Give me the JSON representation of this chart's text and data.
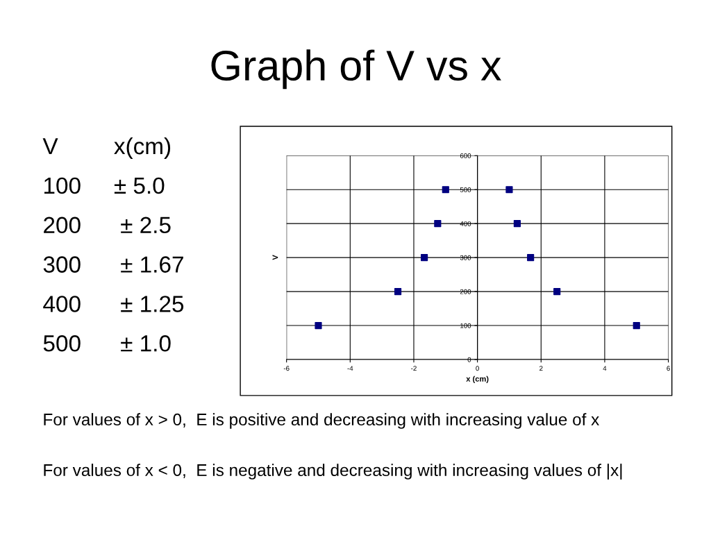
{
  "chart_data": {
    "type": "scatter",
    "title": "Graph of V vs x",
    "x": [
      -5,
      -2.5,
      -1.67,
      -1.25,
      -1,
      1,
      1.25,
      1.67,
      2.5,
      5
    ],
    "series": [
      {
        "color": "#000080",
        "values": [
          100,
          200,
          300,
          400,
          500,
          500,
          400,
          300,
          200,
          100
        ]
      }
    ],
    "xlabel": "x (cm)",
    "ylabel": "V",
    "xlim": [
      -6,
      6
    ],
    "xticks": [
      -6,
      -4,
      -2,
      0,
      2,
      4,
      6
    ],
    "ylim": [
      0,
      600
    ],
    "yticks": [
      0,
      100,
      200,
      300,
      400,
      500,
      600
    ],
    "grid": true,
    "marker": "square",
    "annotations": [
      "V",
      "x(cm)",
      "100",
      "± 5.0",
      "200",
      " ± 2.5",
      "300",
      " ± 1.67",
      "400",
      " ± 1.25",
      "500",
      " ± 1.0",
      "For values of x > 0,  E is positive and decreasing with increasing value of x",
      "For values of x < 0,  E is negative and decreasing with increasing values of |x|"
    ]
  }
}
